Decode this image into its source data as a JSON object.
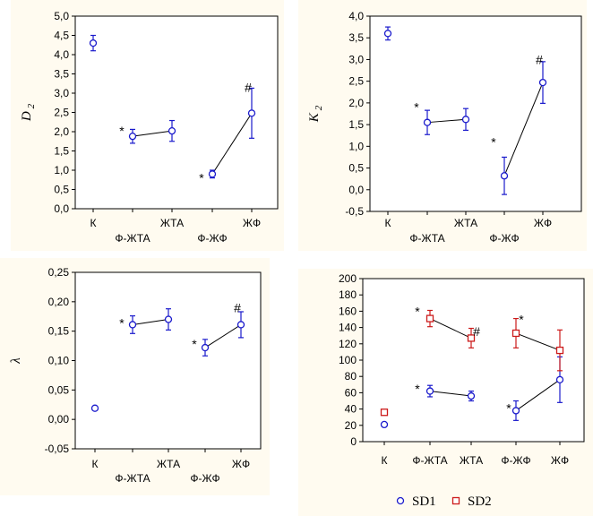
{
  "colors": {
    "panel_bg": "#fffbf0",
    "plot_bg": "#ffffff",
    "sd1": "#1a1acc",
    "sd2": "#cc1a1a",
    "line": "#000000"
  },
  "chart_data": [
    {
      "type": "line",
      "ylabel": "D",
      "ylabel_sub": "2",
      "ylim": [
        0,
        5
      ],
      "yticks": [
        "0,0",
        "0,5",
        "1,0",
        "1,5",
        "2,0",
        "2,5",
        "3,0",
        "3,5",
        "4,0",
        "4,5",
        "5,0"
      ],
      "x_upper": [
        "К",
        "ЖТА",
        "ЖФ"
      ],
      "x_lower": [
        "Ф-ЖТА",
        "Ф-ЖФ"
      ],
      "series": [
        {
          "points": [
            {
              "group": "К",
              "value": 4.3,
              "err": 0.2
            },
            {
              "group": "Ф-ЖТА",
              "value": 1.88,
              "err": 0.18
            },
            {
              "group": "ЖТА",
              "value": 2.02,
              "err": 0.27
            },
            {
              "group": "Ф-ЖФ",
              "value": 0.9,
              "err": 0.1
            },
            {
              "group": "ЖФ",
              "value": 2.48,
              "err": 0.65
            }
          ],
          "lines": [
            [
              "Ф-ЖТА",
              "ЖТА"
            ],
            [
              "Ф-ЖФ",
              "ЖФ"
            ]
          ]
        }
      ],
      "marks": [
        {
          "text": "*",
          "group": "Ф-ЖТА",
          "value": 2.02
        },
        {
          "text": "*",
          "group": "Ф-ЖФ",
          "value": 0.8
        },
        {
          "text": "#",
          "group": "ЖФ",
          "value": 3.15
        }
      ]
    },
    {
      "type": "line",
      "ylabel": "K",
      "ylabel_sub": "2",
      "ylim": [
        -0.5,
        4
      ],
      "yticks": [
        "-0,5",
        "0,0",
        "0,5",
        "1,0",
        "1,5",
        "2,0",
        "2,5",
        "3,0",
        "3,5",
        "4,0"
      ],
      "x_upper": [
        "К",
        "ЖТА",
        "ЖФ"
      ],
      "x_lower": [
        "Ф-ЖТА",
        "Ф-ЖФ"
      ],
      "series": [
        {
          "points": [
            {
              "group": "К",
              "value": 3.6,
              "err": 0.15
            },
            {
              "group": "Ф-ЖТА",
              "value": 1.55,
              "err": 0.28
            },
            {
              "group": "ЖТА",
              "value": 1.62,
              "err": 0.25
            },
            {
              "group": "Ф-ЖФ",
              "value": 0.32,
              "err": 0.43
            },
            {
              "group": "ЖФ",
              "value": 2.47,
              "err": 0.48
            }
          ],
          "lines": [
            [
              "Ф-ЖТА",
              "ЖТА"
            ],
            [
              "Ф-ЖФ",
              "ЖФ"
            ]
          ]
        }
      ],
      "marks": [
        {
          "text": "*",
          "group": "Ф-ЖТА",
          "value": 1.9
        },
        {
          "text": "*",
          "group": "Ф-ЖФ",
          "value": 1.1
        },
        {
          "text": "#",
          "group": "ЖФ",
          "value": 3.0
        }
      ]
    },
    {
      "type": "line",
      "ylabel": "λ",
      "ylabel_sub": "",
      "ylim": [
        -0.05,
        0.25
      ],
      "yticks": [
        "-0,05",
        "0,00",
        "0,05",
        "0,10",
        "0,15",
        "0,20",
        "0,25"
      ],
      "x_upper": [
        "К",
        "ЖТА",
        "ЖФ"
      ],
      "x_lower": [
        "Ф-ЖТА",
        "Ф-ЖФ"
      ],
      "series": [
        {
          "points": [
            {
              "group": "К",
              "value": 0.019,
              "err": 0
            },
            {
              "group": "Ф-ЖТА",
              "value": 0.161,
              "err": 0.015
            },
            {
              "group": "ЖТА",
              "value": 0.17,
              "err": 0.018
            },
            {
              "group": "Ф-ЖФ",
              "value": 0.122,
              "err": 0.014
            },
            {
              "group": "ЖФ",
              "value": 0.161,
              "err": 0.022
            }
          ],
          "lines": [
            [
              "Ф-ЖТА",
              "ЖТА"
            ],
            [
              "Ф-ЖФ",
              "ЖФ"
            ]
          ]
        }
      ],
      "marks": [
        {
          "text": "*",
          "group": "Ф-ЖТА",
          "value": 0.164
        },
        {
          "text": "*",
          "group": "Ф-ЖФ",
          "value": 0.128
        },
        {
          "text": "#",
          "group": "ЖФ",
          "value": 0.19
        }
      ]
    },
    {
      "type": "line",
      "ylabel": "",
      "ylabel_sub": "",
      "ylim": [
        0,
        200
      ],
      "yticks": [
        "0",
        "20",
        "40",
        "60",
        "80",
        "100",
        "120",
        "140",
        "160",
        "180",
        "200"
      ],
      "x_upper": [
        "К",
        "Ф-ЖТА",
        "ЖТА",
        "Ф-ЖФ",
        "ЖФ"
      ],
      "x_lower": [],
      "legend": {
        "position": "bottom",
        "items": [
          {
            "name": "SD1",
            "marker": "circle"
          },
          {
            "name": "SD2",
            "marker": "square"
          }
        ]
      },
      "series": [
        {
          "name": "SD1",
          "marker": "circle",
          "points": [
            {
              "group": "К",
              "value": 21,
              "err": 2
            },
            {
              "group": "Ф-ЖТА",
              "value": 62,
              "err": 7
            },
            {
              "group": "ЖТА",
              "value": 56,
              "err": 6
            },
            {
              "group": "Ф-ЖФ",
              "value": 38,
              "err": 12
            },
            {
              "group": "ЖФ",
              "value": 76,
              "err": 28
            }
          ],
          "lines": [
            [
              "Ф-ЖТА",
              "ЖТА"
            ],
            [
              "Ф-ЖФ",
              "ЖФ"
            ]
          ]
        },
        {
          "name": "SD2",
          "marker": "square",
          "points": [
            {
              "group": "К",
              "value": 36,
              "err": 2
            },
            {
              "group": "Ф-ЖТА",
              "value": 151,
              "err": 10
            },
            {
              "group": "ЖТА",
              "value": 127,
              "err": 12
            },
            {
              "group": "Ф-ЖФ",
              "value": 133,
              "err": 18
            },
            {
              "group": "ЖФ",
              "value": 112,
              "err": 25
            }
          ],
          "lines": [
            [
              "Ф-ЖТА",
              "ЖТА"
            ],
            [
              "Ф-ЖФ",
              "ЖФ"
            ]
          ]
        }
      ],
      "marks": [
        {
          "text": "*",
          "group": "Ф-ЖТА",
          "value": 160,
          "dx": -14
        },
        {
          "text": "*",
          "group": "Ф-ЖТА",
          "value": 65,
          "dx": -14
        },
        {
          "text": "#",
          "group": "ЖТА",
          "value": 135,
          "dx": 6
        },
        {
          "text": "*",
          "group": "Ф-ЖФ",
          "value": 150,
          "dx": 6
        },
        {
          "text": "*",
          "group": "Ф-ЖФ",
          "value": 41,
          "dx": -8
        }
      ]
    }
  ]
}
